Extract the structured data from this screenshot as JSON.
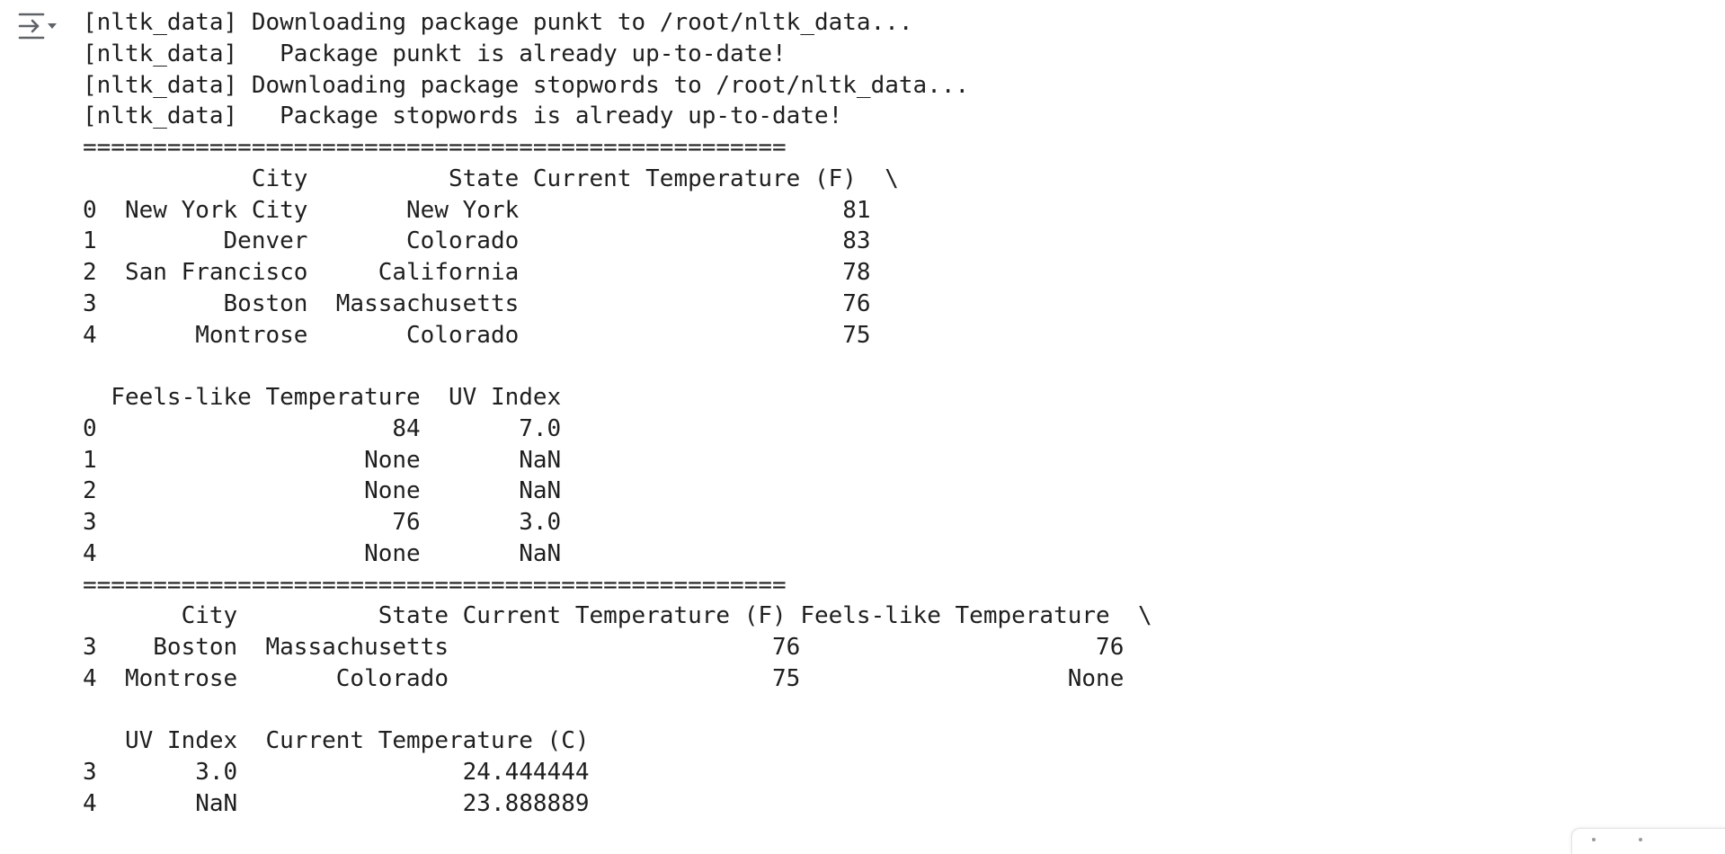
{
  "output": {
    "toggle_icon": "output-collapse-icon",
    "lines": [
      "[nltk_data] Downloading package punkt to /root/nltk_data...",
      "[nltk_data]   Package punkt is already up-to-date!",
      "[nltk_data] Downloading package stopwords to /root/nltk_data...",
      "[nltk_data]   Package stopwords is already up-to-date!",
      "==================================================",
      "            City          State Current Temperature (F)  \\",
      "0  New York City       New York                       81",
      "1         Denver       Colorado                       83",
      "2  San Francisco     California                       78",
      "3         Boston  Massachusetts                       76",
      "4       Montrose       Colorado                       75",
      "",
      "  Feels-like Temperature  UV Index",
      "0                     84       7.0",
      "1                   None       NaN",
      "2                   None       NaN",
      "3                     76       3.0",
      "4                   None       NaN",
      "==================================================",
      "       City          State Current Temperature (F) Feels-like Temperature  \\",
      "3    Boston  Massachusetts                       76                     76",
      "4  Montrose       Colorado                       75                   None",
      "",
      "   UV Index  Current Temperature (C)",
      "3       3.0                24.444444",
      "4       NaN                23.888889"
    ]
  }
}
